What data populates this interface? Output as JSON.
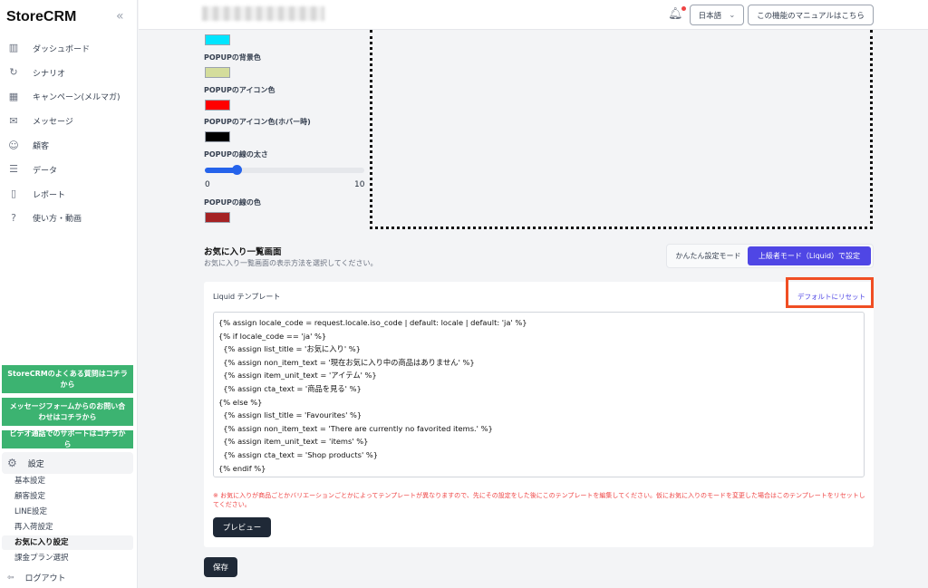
{
  "sidebar": {
    "logo": "StoreCRM",
    "collapse_icon": "«",
    "items": [
      {
        "label": "ダッシュボード",
        "icon": "bar-chart"
      },
      {
        "label": "シナリオ",
        "icon": "refresh"
      },
      {
        "label": "キャンペーン(メルマガ)",
        "icon": "calendar"
      },
      {
        "label": "メッセージ",
        "icon": "envelope"
      },
      {
        "label": "顧客",
        "icon": "users"
      },
      {
        "label": "データ",
        "icon": "database"
      },
      {
        "label": "レポート",
        "icon": "document"
      },
      {
        "label": "使い方・動画",
        "icon": "question"
      }
    ],
    "help_links": [
      "StoreCRMのよくある質問はコチラから",
      "メッセージフォームからのお問い合わせはコチラから",
      "ビデオ通話でのサポートはコチラから"
    ],
    "settings_label": "設定",
    "settings_sub": [
      "基本設定",
      "顧客設定",
      "LINE設定",
      "再入荷設定",
      "お気に入り設定",
      "課金プラン選択"
    ],
    "active_sub": "お気に入り設定",
    "logout": "ログアウト"
  },
  "header": {
    "language": "日本語",
    "manual_button": "この機能のマニュアルはこちら"
  },
  "colors": {
    "top_swatch": "#00e5ff",
    "popup_bg": "#d4dd9c",
    "popup_icon": "#ff0000",
    "popup_icon_hover": "#000000",
    "popup_border": "#a52224",
    "accent": "#4f46e5"
  },
  "fields": {
    "popup_bg_label": "POPUPの背景色",
    "popup_icon_label": "POPUPのアイコン色",
    "popup_icon_hover_label": "POPUPのアイコン色(ホバー時)",
    "border_width_label": "POPUPの線の太さ",
    "border_width_min": "0",
    "border_width_max": "10",
    "border_width_value": 2,
    "border_color_label": "POPUPの線の色"
  },
  "section": {
    "title": "お気に入り一覧画面",
    "description": "お気に入り一覧画面の表示方法を選択してください。",
    "mode_simple": "かんたん設定モード",
    "mode_advanced": "上級者モード（Liquid）で設定"
  },
  "template": {
    "title": "Liquid テンプレート",
    "reset": "デフォルトにリセット",
    "code": "{% assign locale_code = request.locale.iso_code | default: locale | default: 'ja' %}\n{% if locale_code == 'ja' %}\n  {% assign list_title = 'お気に入り' %}\n  {% assign non_item_text = '現在お気に入り中の商品はありません' %}\n  {% assign item_unit_text = 'アイテム' %}\n  {% assign cta_text = '商品を見る' %}\n{% else %}\n  {% assign list_title = 'Favourites' %}\n  {% assign non_item_text = 'There are currently no favorited items.' %}\n  {% assign item_unit_text = 'items' %}\n  {% assign cta_text = 'Shop products' %}\n{% endif %}",
    "note": "※ お気に入りが商品ごとかバリエーションごとかによってテンプレートが異なりますので、先にその設定をした後にこのテンプレートを編集してください。仮にお気に入りのモードを変更した場合はこのテンプレートをリセットしてください。",
    "preview": "プレビュー"
  },
  "save": "保存"
}
